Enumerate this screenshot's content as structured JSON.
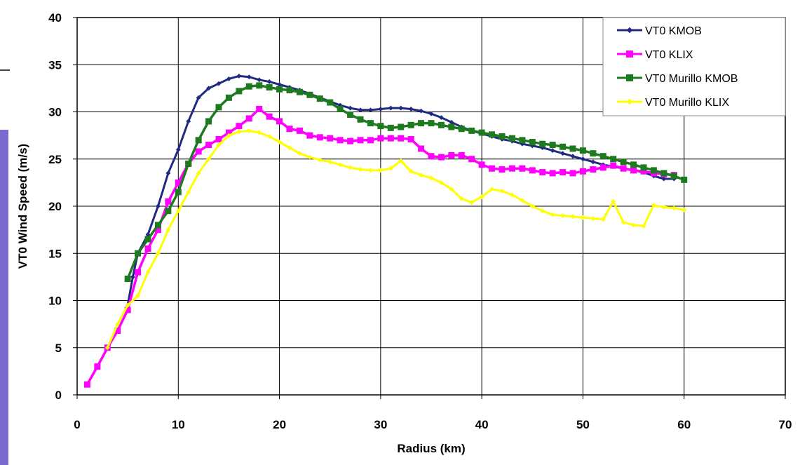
{
  "chart_data": {
    "type": "line",
    "title": "",
    "xlabel": "Radius (km)",
    "ylabel": "VT0 Wind Speed (m/s)",
    "xlim": [
      0,
      70
    ],
    "ylim": [
      0,
      40
    ],
    "xticks": [
      0,
      10,
      20,
      30,
      40,
      50,
      60,
      70
    ],
    "yticks": [
      0,
      5,
      10,
      15,
      20,
      25,
      30,
      35,
      40
    ],
    "grid": true,
    "legend_position": "top-right",
    "series": [
      {
        "name": "VT0 KMOB",
        "color": "#1f2a80",
        "marker": "diamond",
        "x": [
          5,
          5.5,
          6,
          7,
          8,
          9,
          10,
          11,
          12,
          13,
          14,
          15,
          16,
          17,
          18,
          19,
          20,
          21,
          22,
          23,
          24,
          25,
          26,
          27,
          28,
          29,
          30,
          31,
          32,
          33,
          34,
          35,
          36,
          37,
          38,
          39,
          40,
          41,
          42,
          43,
          44,
          45,
          46,
          47,
          48,
          49,
          50,
          51,
          52,
          53,
          54,
          55,
          56,
          57,
          58,
          59
        ],
        "y": [
          9.5,
          12.5,
          15,
          17,
          20,
          23.5,
          26,
          29,
          31.5,
          32.5,
          33,
          33.5,
          33.8,
          33.7,
          33.4,
          33.2,
          32.9,
          32.6,
          32.3,
          31.9,
          31.5,
          31.1,
          30.7,
          30.4,
          30.2,
          30.2,
          30.3,
          30.4,
          30.4,
          30.3,
          30.1,
          29.8,
          29.4,
          28.9,
          28.4,
          28,
          27.7,
          27.4,
          27.1,
          26.9,
          26.6,
          26.4,
          26.2,
          25.9,
          25.6,
          25.3,
          25,
          24.7,
          24.4,
          24.2,
          24,
          23.8,
          23.6,
          23.2,
          22.9,
          22.9
        ]
      },
      {
        "name": "VT0 KLIX",
        "color": "#ff00ff",
        "marker": "square",
        "x": [
          1,
          2,
          3,
          4,
          5,
          6,
          7,
          8,
          9,
          10,
          11,
          12,
          13,
          14,
          15,
          16,
          17,
          18,
          19,
          20,
          21,
          22,
          23,
          24,
          25,
          26,
          27,
          28,
          29,
          30,
          31,
          32,
          33,
          34,
          35,
          36,
          37,
          38,
          39,
          40,
          41,
          42,
          43,
          44,
          45,
          46,
          47,
          48,
          49,
          50,
          51,
          52,
          53,
          54,
          55,
          56,
          57,
          58,
          59
        ],
        "y": [
          1.1,
          3,
          5,
          6.8,
          9,
          13,
          15.5,
          17.5,
          20.5,
          22.5,
          24.5,
          25.8,
          26.5,
          27.1,
          27.8,
          28.5,
          29.3,
          30.3,
          29.5,
          29,
          28.2,
          28,
          27.5,
          27.3,
          27.2,
          27,
          26.9,
          27,
          27,
          27.2,
          27.2,
          27.2,
          27.1,
          26.1,
          25.3,
          25.2,
          25.4,
          25.4,
          25,
          24.4,
          24,
          23.9,
          24,
          24,
          23.8,
          23.6,
          23.5,
          23.6,
          23.5,
          23.7,
          23.9,
          24.1,
          24.3,
          24,
          23.8,
          23.7,
          23.5,
          23.4,
          23.3
        ]
      },
      {
        "name": "VT0 Murillo KMOB",
        "color": "#1e7a1e",
        "marker": "square",
        "x": [
          5,
          6,
          7,
          8,
          9,
          10,
          11,
          12,
          13,
          14,
          15,
          16,
          17,
          18,
          19,
          20,
          21,
          22,
          23,
          24,
          25,
          26,
          27,
          28,
          29,
          30,
          31,
          32,
          33,
          34,
          35,
          36,
          37,
          38,
          39,
          40,
          41,
          42,
          43,
          44,
          45,
          46,
          47,
          48,
          49,
          50,
          51,
          52,
          53,
          54,
          55,
          56,
          57,
          58,
          59,
          60
        ],
        "y": [
          12.3,
          15,
          16.5,
          18,
          19.5,
          21.5,
          24.5,
          27,
          29,
          30.5,
          31.5,
          32.2,
          32.7,
          32.8,
          32.6,
          32.4,
          32.3,
          32.1,
          31.8,
          31.4,
          31,
          30.3,
          29.7,
          29.2,
          28.8,
          28.5,
          28.3,
          28.4,
          28.6,
          28.8,
          28.8,
          28.6,
          28.4,
          28.2,
          28,
          27.8,
          27.6,
          27.4,
          27.2,
          27,
          26.8,
          26.6,
          26.5,
          26.3,
          26.1,
          25.9,
          25.6,
          25.3,
          25,
          24.7,
          24.4,
          24.1,
          23.8,
          23.5,
          23.2,
          22.8
        ]
      },
      {
        "name": "VT0 Murillo KLIX",
        "color": "#ffff00",
        "marker": "diamond",
        "x": [
          3,
          4,
          5,
          6,
          7,
          8,
          9,
          10,
          11,
          12,
          13,
          14,
          15,
          16,
          17,
          18,
          19,
          20,
          21,
          22,
          23,
          24,
          25,
          26,
          27,
          28,
          29,
          30,
          31,
          32,
          33,
          34,
          35,
          36,
          37,
          38,
          39,
          40,
          41,
          42,
          43,
          44,
          45,
          46,
          47,
          48,
          49,
          50,
          51,
          52,
          53,
          54,
          55,
          56,
          57,
          58,
          59,
          60
        ],
        "y": [
          5,
          7.5,
          9.5,
          10.5,
          13,
          15,
          17.5,
          19.5,
          21.5,
          23.5,
          25,
          26.5,
          27.5,
          27.9,
          28,
          27.8,
          27.4,
          26.8,
          26.2,
          25.6,
          25.2,
          24.9,
          24.7,
          24.4,
          24.1,
          23.9,
          23.8,
          23.8,
          24,
          24.8,
          23.7,
          23.3,
          23,
          22.5,
          21.8,
          20.8,
          20.4,
          21,
          21.8,
          21.6,
          21.2,
          20.6,
          20,
          19.5,
          19.1,
          19,
          18.9,
          18.8,
          18.7,
          18.6,
          20.5,
          18.3,
          18,
          17.9,
          20.1,
          19.9,
          19.8,
          19.6
        ]
      }
    ]
  }
}
